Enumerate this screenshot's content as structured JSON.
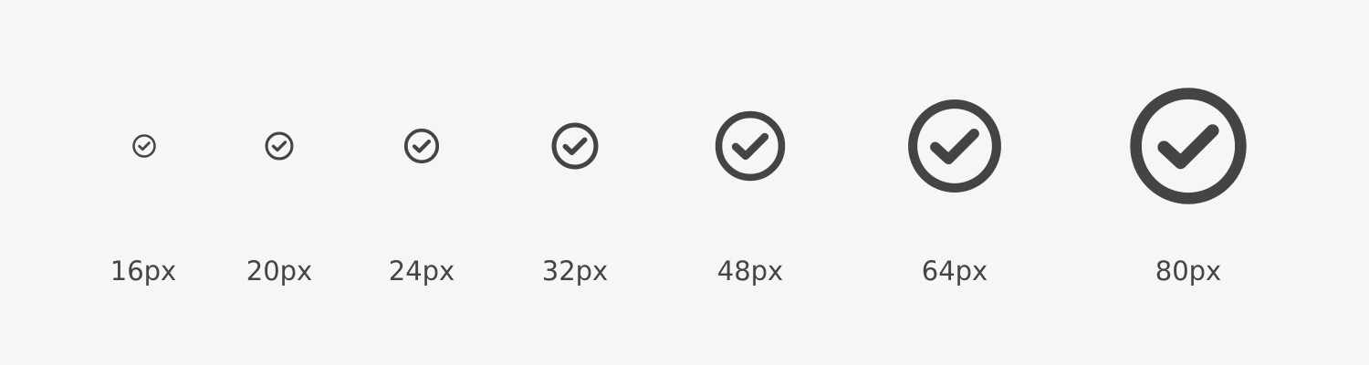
{
  "icon_sizes": [
    {
      "label": "16px",
      "icon": "check-circle-icon"
    },
    {
      "label": "20px",
      "icon": "check-circle-icon"
    },
    {
      "label": "24px",
      "icon": "check-circle-icon"
    },
    {
      "label": "32px",
      "icon": "check-circle-icon"
    },
    {
      "label": "48px",
      "icon": "check-circle-icon"
    },
    {
      "label": "64px",
      "icon": "check-circle-icon"
    },
    {
      "label": "80px",
      "icon": "check-circle-icon"
    }
  ],
  "colors": {
    "background": "#f6f6f6",
    "icon": "#444444",
    "text": "#444444"
  }
}
